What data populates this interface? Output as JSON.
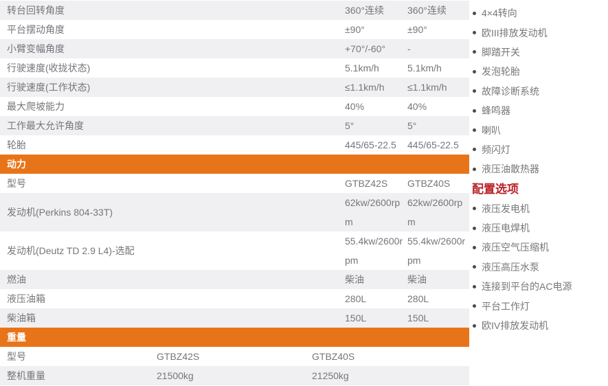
{
  "colors": {
    "section_header_bg": "#e87419",
    "section_header_text": "#ffffff",
    "row_stripe": "#f0f0f2",
    "table_text": "#75767a",
    "options_title_red": "#b82529",
    "bullet": "#4a4b4f"
  },
  "table": {
    "rows_top": [
      {
        "label": "转台回转角度",
        "v1": "360°连续",
        "v2": "360°连续"
      },
      {
        "label": "平台摆动角度",
        "v1": "±90°",
        "v2": "±90°"
      },
      {
        "label": "小臂变幅角度",
        "v1": "+70°/-60°",
        "v2": "-"
      },
      {
        "label": "行驶速度(收拢状态)",
        "v1": "5.1km/h",
        "v2": "5.1km/h"
      },
      {
        "label": "行驶速度(工作状态)",
        "v1": "≤1.1km/h",
        "v2": "≤1.1km/h"
      },
      {
        "label": "最大爬坡能力",
        "v1": "40%",
        "v2": "40%"
      },
      {
        "label": "工作最大允许角度",
        "v1": "5°",
        "v2": "5°"
      },
      {
        "label": "轮胎",
        "v1": "445/65-22.5",
        "v2": "445/65-22.5"
      }
    ],
    "power": {
      "title": "动力",
      "rows": [
        {
          "label": "型号",
          "v1": "GTBZ42S",
          "v2": "GTBZ40S"
        },
        {
          "label": "发动机(Perkins 804-33T)",
          "v1": "62kw/2600rpm",
          "v2": "62kw/2600rpm"
        },
        {
          "label": "发动机(Deutz TD 2.9 L4)-选配",
          "v1": "55.4kw/2600rpm",
          "v2": "55.4kw/2600rpm"
        },
        {
          "label": "燃油",
          "v1": "柴油",
          "v2": "柴油"
        },
        {
          "label": "液压油箱",
          "v1": "280L",
          "v2": "280L"
        },
        {
          "label": "柴油箱",
          "v1": "150L",
          "v2": "150L"
        }
      ]
    },
    "weight": {
      "title": "重量",
      "rows": [
        {
          "label": "型号",
          "v1": "GTBZ42S",
          "v2": "GTBZ40S"
        },
        {
          "label": "整机重量",
          "v1": "21500kg",
          "v2": "21250kg"
        }
      ]
    }
  },
  "sidebar": {
    "standard_items": [
      "4×4转向",
      "欧III排放发动机",
      "脚踏开关",
      "发泡轮胎",
      "故障诊断系统",
      "蜂鸣器",
      "喇叭",
      "频闪灯",
      "液压油散热器"
    ],
    "options_title": "配置选项",
    "options_items": [
      "液压发电机",
      "液压电焊机",
      "液压空气压缩机",
      "液压高压水泵",
      "连接到平台的AC电源",
      "平台工作灯",
      "欧IV排放发动机"
    ]
  }
}
